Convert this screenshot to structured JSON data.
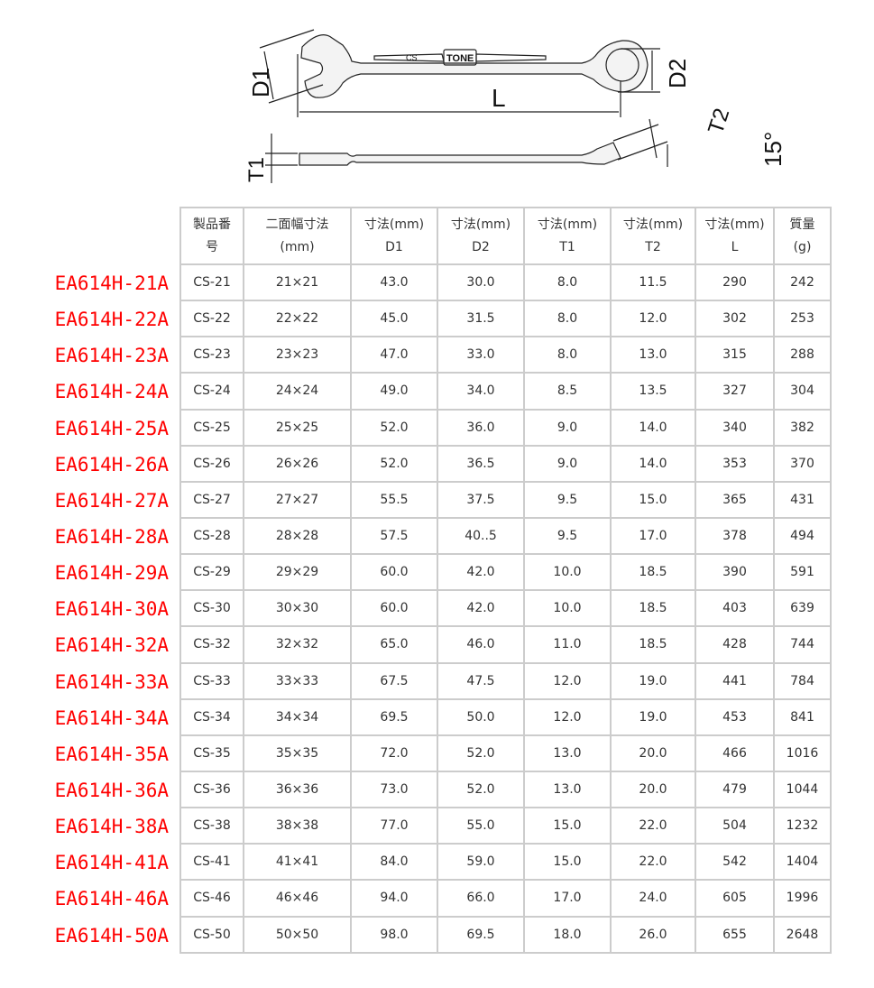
{
  "diagram": {
    "d1": "D1",
    "d2": "D2",
    "l": "L",
    "t1": "T1",
    "t2": "T2",
    "angle": "15°",
    "series": "CS",
    "brand": "TONE"
  },
  "colors": {
    "code": "#ff0000",
    "border": "#cccccc"
  },
  "headers": [
    [
      "製品番",
      "号"
    ],
    [
      "二面幅寸法",
      "(mm)"
    ],
    [
      "寸法(mm)",
      "D1"
    ],
    [
      "寸法(mm)",
      "D2"
    ],
    [
      "寸法(mm)",
      "T1"
    ],
    [
      "寸法(mm)",
      "T2"
    ],
    [
      "寸法(mm)",
      "L"
    ],
    [
      "質量",
      "(g)"
    ]
  ],
  "rows": [
    {
      "code": "EA614H-21A",
      "cells": [
        "CS-21",
        "21×21",
        "43.0",
        "30.0",
        "8.0",
        "11.5",
        "290",
        "242"
      ]
    },
    {
      "code": "EA614H-22A",
      "cells": [
        "CS-22",
        "22×22",
        "45.0",
        "31.5",
        "8.0",
        "12.0",
        "302",
        "253"
      ]
    },
    {
      "code": "EA614H-23A",
      "cells": [
        "CS-23",
        "23×23",
        "47.0",
        "33.0",
        "8.0",
        "13.0",
        "315",
        "288"
      ]
    },
    {
      "code": "EA614H-24A",
      "cells": [
        "CS-24",
        "24×24",
        "49.0",
        "34.0",
        "8.5",
        "13.5",
        "327",
        "304"
      ]
    },
    {
      "code": "EA614H-25A",
      "cells": [
        "CS-25",
        "25×25",
        "52.0",
        "36.0",
        "9.0",
        "14.0",
        "340",
        "382"
      ]
    },
    {
      "code": "EA614H-26A",
      "cells": [
        "CS-26",
        "26×26",
        "52.0",
        "36.5",
        "9.0",
        "14.0",
        "353",
        "370"
      ]
    },
    {
      "code": "EA614H-27A",
      "cells": [
        "CS-27",
        "27×27",
        "55.5",
        "37.5",
        "9.5",
        "15.0",
        "365",
        "431"
      ]
    },
    {
      "code": "EA614H-28A",
      "cells": [
        "CS-28",
        "28×28",
        "57.5",
        "40..5",
        "9.5",
        "17.0",
        "378",
        "494"
      ]
    },
    {
      "code": "EA614H-29A",
      "cells": [
        "CS-29",
        "29×29",
        "60.0",
        "42.0",
        "10.0",
        "18.5",
        "390",
        "591"
      ]
    },
    {
      "code": "EA614H-30A",
      "cells": [
        "CS-30",
        "30×30",
        "60.0",
        "42.0",
        "10.0",
        "18.5",
        "403",
        "639"
      ]
    },
    {
      "code": "EA614H-32A",
      "cells": [
        "CS-32",
        "32×32",
        "65.0",
        "46.0",
        "11.0",
        "18.5",
        "428",
        "744"
      ]
    },
    {
      "code": "EA614H-33A",
      "cells": [
        "CS-33",
        "33×33",
        "67.5",
        "47.5",
        "12.0",
        "19.0",
        "441",
        "784"
      ]
    },
    {
      "code": "EA614H-34A",
      "cells": [
        "CS-34",
        "34×34",
        "69.5",
        "50.0",
        "12.0",
        "19.0",
        "453",
        "841"
      ]
    },
    {
      "code": "EA614H-35A",
      "cells": [
        "CS-35",
        "35×35",
        "72.0",
        "52.0",
        "13.0",
        "20.0",
        "466",
        "1016"
      ]
    },
    {
      "code": "EA614H-36A",
      "cells": [
        "CS-36",
        "36×36",
        "73.0",
        "52.0",
        "13.0",
        "20.0",
        "479",
        "1044"
      ]
    },
    {
      "code": "EA614H-38A",
      "cells": [
        "CS-38",
        "38×38",
        "77.0",
        "55.0",
        "15.0",
        "22.0",
        "504",
        "1232"
      ]
    },
    {
      "code": "EA614H-41A",
      "cells": [
        "CS-41",
        "41×41",
        "84.0",
        "59.0",
        "15.0",
        "22.0",
        "542",
        "1404"
      ]
    },
    {
      "code": "EA614H-46A",
      "cells": [
        "CS-46",
        "46×46",
        "94.0",
        "66.0",
        "17.0",
        "24.0",
        "605",
        "1996"
      ]
    },
    {
      "code": "EA614H-50A",
      "cells": [
        "CS-50",
        "50×50",
        "98.0",
        "69.5",
        "18.0",
        "26.0",
        "655",
        "2648"
      ]
    }
  ]
}
